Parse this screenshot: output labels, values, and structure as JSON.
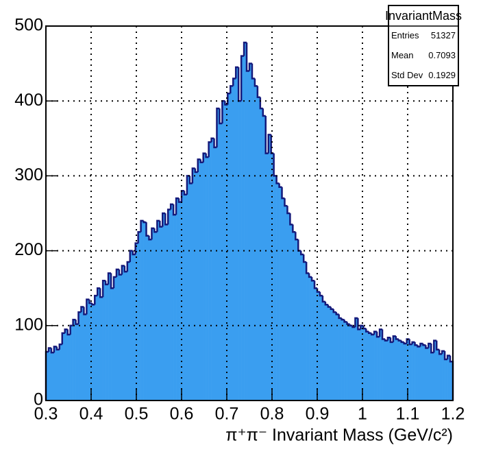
{
  "chart_data": {
    "type": "histogram",
    "xlabel": "π⁺π⁻ Invariant Mass (GeV/c²)",
    "fill_color": "#3a9ef0",
    "line_color": "#14197a",
    "xlim": [
      0.3,
      1.2
    ],
    "xticks": [
      0.3,
      0.4,
      0.5,
      0.6,
      0.7,
      0.8,
      0.9,
      1,
      1.1,
      1.2
    ],
    "ylim": [
      0,
      500
    ],
    "yticks": [
      0,
      100,
      200,
      300,
      400,
      500
    ],
    "grid": true,
    "stats": {
      "title": "InvariantMass",
      "rows": [
        {
          "label": "Entries",
          "value": 51327
        },
        {
          "label": "Mean",
          "value": 0.7093
        },
        {
          "label": "Std Dev",
          "value": 0.1929
        }
      ]
    },
    "bins": [
      0.3,
      0.306,
      0.312,
      0.318,
      0.324,
      0.33,
      0.336,
      0.342,
      0.348,
      0.354,
      0.36,
      0.366,
      0.372,
      0.378,
      0.384,
      0.39,
      0.396,
      0.402,
      0.408,
      0.414,
      0.42,
      0.426,
      0.432,
      0.438,
      0.444,
      0.45,
      0.456,
      0.462,
      0.468,
      0.474,
      0.48,
      0.486,
      0.492,
      0.498,
      0.504,
      0.51,
      0.516,
      0.522,
      0.528,
      0.534,
      0.54,
      0.546,
      0.552,
      0.558,
      0.564,
      0.57,
      0.576,
      0.582,
      0.588,
      0.594,
      0.6,
      0.606,
      0.612,
      0.618,
      0.624,
      0.63,
      0.636,
      0.642,
      0.648,
      0.654,
      0.66,
      0.666,
      0.672,
      0.678,
      0.684,
      0.69,
      0.696,
      0.702,
      0.708,
      0.714,
      0.72,
      0.726,
      0.732,
      0.738,
      0.744,
      0.75,
      0.756,
      0.762,
      0.768,
      0.774,
      0.78,
      0.786,
      0.792,
      0.798,
      0.804,
      0.81,
      0.816,
      0.822,
      0.828,
      0.834,
      0.84,
      0.846,
      0.852,
      0.858,
      0.864,
      0.87,
      0.876,
      0.882,
      0.888,
      0.894,
      0.9,
      0.906,
      0.912,
      0.918,
      0.924,
      0.93,
      0.936,
      0.942,
      0.948,
      0.954,
      0.96,
      0.966,
      0.972,
      0.978,
      0.984,
      0.99,
      0.996,
      1.002,
      1.008,
      1.014,
      1.02,
      1.026,
      1.032,
      1.038,
      1.044,
      1.05,
      1.056,
      1.062,
      1.068,
      1.074,
      1.08,
      1.086,
      1.092,
      1.098,
      1.104,
      1.11,
      1.116,
      1.122,
      1.128,
      1.134,
      1.14,
      1.146,
      1.152,
      1.158,
      1.164,
      1.17,
      1.176,
      1.182,
      1.188,
      1.194,
      1.2
    ],
    "values": [
      65,
      70,
      64,
      72,
      68,
      75,
      90,
      95,
      88,
      100,
      108,
      102,
      118,
      125,
      115,
      135,
      130,
      128,
      140,
      150,
      138,
      160,
      155,
      170,
      150,
      165,
      175,
      168,
      180,
      172,
      185,
      200,
      195,
      210,
      225,
      240,
      238,
      220,
      215,
      230,
      225,
      240,
      232,
      250,
      235,
      255,
      262,
      248,
      270,
      265,
      280,
      275,
      300,
      290,
      310,
      305,
      322,
      318,
      330,
      325,
      345,
      350,
      338,
      390,
      370,
      400,
      395,
      410,
      420,
      430,
      445,
      400,
      460,
      478,
      440,
      450,
      430,
      420,
      405,
      390,
      380,
      330,
      355,
      330,
      300,
      290,
      285,
      270,
      260,
      250,
      235,
      225,
      215,
      200,
      195,
      185,
      170,
      165,
      160,
      150,
      145,
      140,
      132,
      128,
      125,
      122,
      118,
      115,
      110,
      108,
      105,
      102,
      100,
      98,
      110,
      95,
      100,
      96,
      92,
      90,
      88,
      92,
      85,
      95,
      82,
      80,
      84,
      78,
      86,
      82,
      80,
      78,
      76,
      82,
      75,
      78,
      74,
      72,
      76,
      74,
      70,
      76,
      64,
      80,
      68,
      62,
      66,
      55,
      60,
      52
    ]
  }
}
